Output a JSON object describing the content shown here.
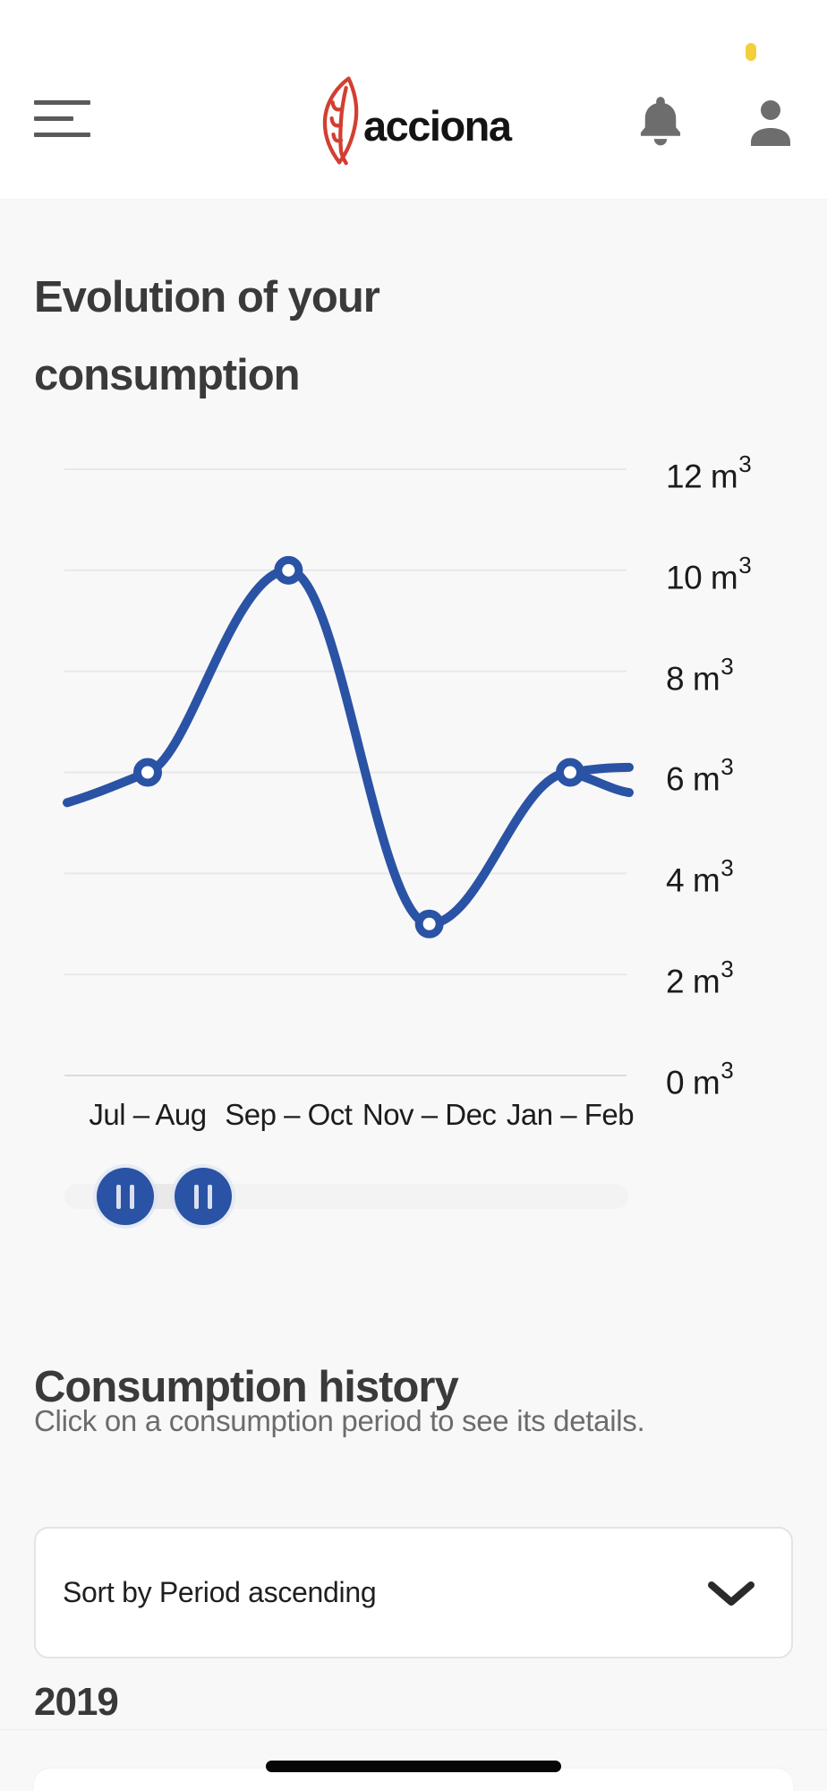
{
  "header": {
    "brand_logo_text": "acciona",
    "notification_badge_color": "#f4cf3c"
  },
  "icons": {
    "hamburger_menu_icon": "three horizontal bars",
    "acciona_leaf_icon": "red leaf outline logo mark",
    "bell_icon": "notifications bell",
    "person_icon": "user profile silhouette",
    "pause_handle_icon": "two vertical bars on round slider handle",
    "chevron_down_icon": "expand dropdown arrow"
  },
  "sections": {
    "evolution": {
      "title": "Evolution of your consumption"
    },
    "history": {
      "title": "Consumption history",
      "subtitle": "Click on a consumption period to see its details.",
      "sort_dropdown_value": "Sort by Period ascending",
      "year_group_label": "2019"
    }
  },
  "chart_data": {
    "type": "line",
    "categories": [
      "Jul – Aug",
      "Sep – Oct",
      "Nov – Dec",
      "Jan – Feb"
    ],
    "values": [
      6,
      10,
      3,
      6
    ],
    "unit_base": "m",
    "unit_exponent": "3",
    "y_ticks": [
      12,
      10,
      8,
      6,
      4,
      2,
      0
    ],
    "ylim": [
      0,
      13.5
    ],
    "grid": true,
    "legend": false,
    "line_color": "#2a53a5",
    "grid_color": "#e8e8e8",
    "marker_style": "open-circle",
    "edge_continuation": {
      "left_value_at_edge": 5.4,
      "right_values_at_edge": [
        6.1,
        5.6
      ]
    }
  },
  "range_slider": {
    "handle_count": 2,
    "color": "#2a53a5",
    "track_color": "#f3f3f3"
  }
}
